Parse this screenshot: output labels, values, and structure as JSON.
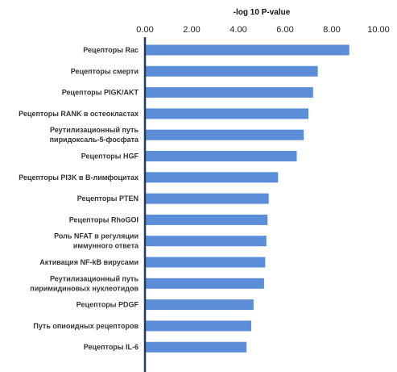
{
  "chart_data": {
    "type": "bar",
    "orientation": "horizontal",
    "title": "",
    "xlabel": "-log 10 P-value",
    "ylabel": "",
    "xlim": [
      0,
      10
    ],
    "xticks": [
      "0.00",
      "2.00",
      "4.00",
      "6.00",
      "8.00",
      "10.00"
    ],
    "x_axis_position": "top",
    "grid": false,
    "bar_color": "#5B8DD9",
    "axis_color": "#1F3A66",
    "categories": [
      [
        "Рецепторы Rac"
      ],
      [
        "Рецепторы смерти"
      ],
      [
        "Рецепторы PIGK/AKT"
      ],
      [
        "Рецепторы RANK в остеокластах"
      ],
      [
        "Реутилизационный путь",
        "пиридоксаль-5-фосфата"
      ],
      [
        "Рецепторы HGF"
      ],
      [
        "Рецепторы PI3K в B-лимфоцитах"
      ],
      [
        "Рецепторы PTEN"
      ],
      [
        "Рецепторы RhoGOI"
      ],
      [
        "Роль NFAT в регуляции",
        "иммунного ответа"
      ],
      [
        "Активация NF-kB вирусами"
      ],
      [
        "Реутилизационный путь",
        "пиримидиновых нуклеотидов"
      ],
      [
        "Рецепторы PDGF"
      ],
      [
        "Путь опиоидных рецепторов"
      ],
      [
        "Рецепторы IL-6"
      ]
    ],
    "values": [
      8.75,
      7.4,
      7.2,
      7.0,
      6.8,
      6.5,
      5.7,
      5.3,
      5.25,
      5.2,
      5.15,
      5.1,
      4.65,
      4.55,
      4.35
    ]
  }
}
